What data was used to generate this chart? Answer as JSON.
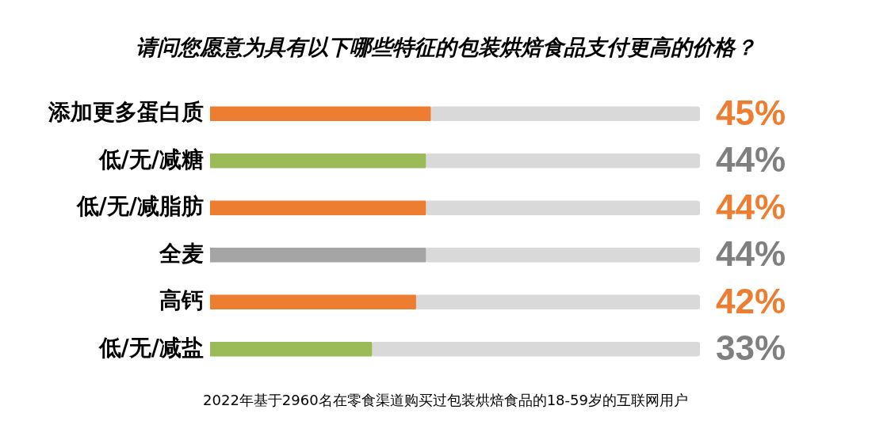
{
  "chart_data": {
    "type": "bar",
    "orientation": "horizontal",
    "stacked": true,
    "title": "请问您愿意为具有以下哪些特征的包装烘焙食品支付更高的价格？",
    "categories": [
      "添加更多蛋白质",
      "低/无/减糖",
      "低/无/减脂肪",
      "全麦",
      "高钙",
      "低/无/减盐"
    ],
    "series": [
      {
        "colors": [
          "#ed7d31",
          "#9bbb59",
          "#ed7d31",
          "#a5a5a5",
          "#ed7d31",
          "#9bbb59"
        ],
        "values": [
          45,
          44,
          44,
          44,
          42,
          33
        ],
        "value_labels": [
          "45%",
          "44%",
          "44%",
          "44%",
          "42%",
          "33%"
        ]
      },
      {
        "color": "#d9d9d9",
        "values": [
          55,
          56,
          56,
          56,
          58,
          67
        ]
      }
    ],
    "xlim": [
      0,
      100
    ],
    "tick_labels": "y",
    "annotations": [
      "2022年基于2960名在零食渠道购买过包装烘焙食品的18-59岁的互联网用户"
    ]
  }
}
